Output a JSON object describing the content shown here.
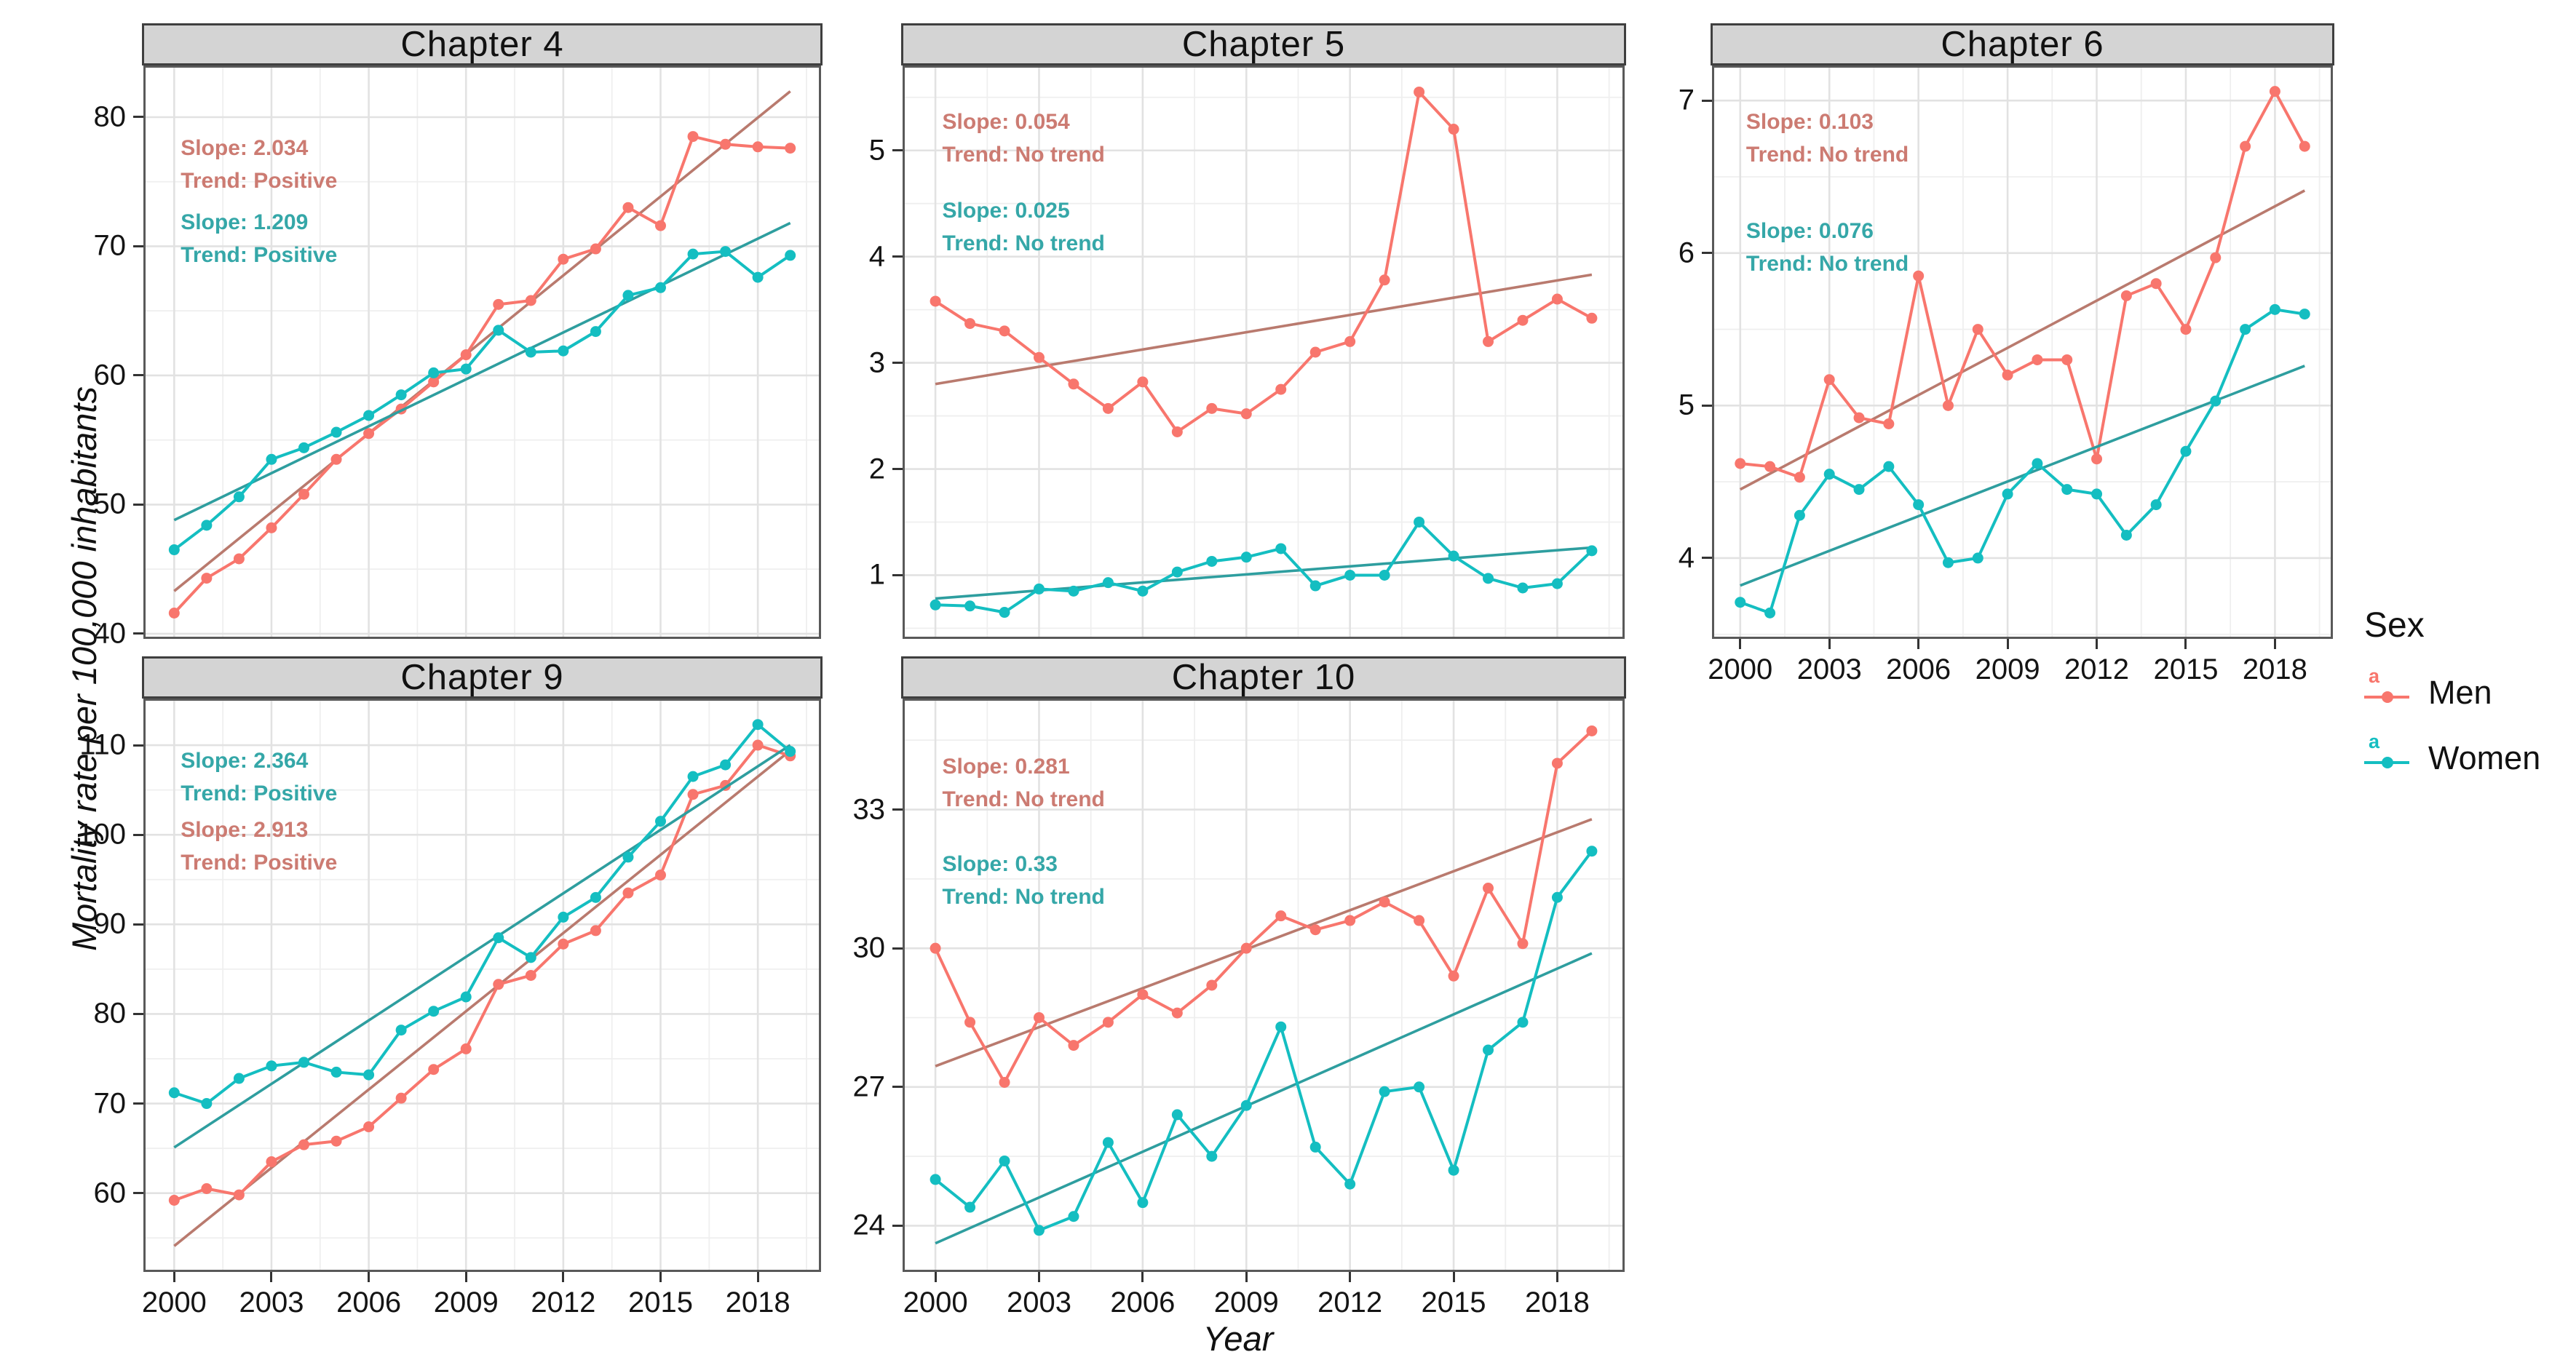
{
  "figure": {
    "ylabel": "Mortality rate per 100,000 inhabitants",
    "xlabel": "Year"
  },
  "colors": {
    "men": "#F8766D",
    "men_trend": "#B97A6E",
    "men_anno": "#CC7B72",
    "women": "#14BEC1",
    "women_trend": "#2E9E9F",
    "women_anno": "#35A7A8",
    "strip_bg": "#d4d4d4",
    "panel_border": "#595959",
    "grid_major": "#e2e2e2",
    "grid_minor": "#efefef"
  },
  "legend": {
    "title": "Sex",
    "items": [
      {
        "label": "Men",
        "glyph": "a",
        "color_key": "men"
      },
      {
        "label": "Women",
        "glyph": "a",
        "color_key": "women"
      }
    ]
  },
  "chart_data": [
    {
      "type": "line",
      "title": "Chapter 4",
      "grid": {
        "row": 0,
        "col": 0,
        "show_x_axis": false
      },
      "x": [
        2000,
        2001,
        2002,
        2003,
        2004,
        2005,
        2006,
        2007,
        2008,
        2009,
        2010,
        2011,
        2012,
        2013,
        2014,
        2015,
        2016,
        2017,
        2018,
        2019
      ],
      "xticks": [
        2000,
        2003,
        2006,
        2009,
        2012,
        2015,
        2018
      ],
      "yticks": [
        40,
        50,
        60,
        70,
        80
      ],
      "ylim": [
        39.6,
        84.0
      ],
      "series": [
        {
          "name": "Men",
          "values": [
            41.6,
            44.3,
            45.8,
            48.2,
            50.8,
            53.5,
            55.5,
            57.4,
            59.5,
            61.6,
            65.5,
            65.8,
            69.0,
            69.8,
            73.0,
            71.6,
            78.5,
            77.9,
            77.7,
            77.6
          ],
          "trend": {
            "y_start": 43.3,
            "y_end": 82.0
          }
        },
        {
          "name": "Women",
          "values": [
            46.5,
            48.4,
            50.6,
            53.5,
            54.4,
            55.6,
            56.9,
            58.5,
            60.2,
            60.5,
            63.5,
            61.8,
            61.9,
            63.4,
            66.2,
            66.8,
            69.4,
            69.6,
            67.6,
            69.3
          ],
          "trend": {
            "y_start": 48.8,
            "y_end": 71.8
          }
        }
      ],
      "annotations": [
        {
          "series": "men",
          "lines": [
            "Slope: 2.034",
            "Trend: Positive"
          ],
          "fx": 0.055,
          "fy": 0.115
        },
        {
          "series": "women",
          "lines": [
            "Slope: 1.209",
            "Trend: Positive"
          ],
          "fx": 0.055,
          "fy": 0.245
        }
      ]
    },
    {
      "type": "line",
      "title": "Chapter 5",
      "grid": {
        "row": 0,
        "col": 1,
        "show_x_axis": false
      },
      "x": [
        2000,
        2001,
        2002,
        2003,
        2004,
        2005,
        2006,
        2007,
        2008,
        2009,
        2010,
        2011,
        2012,
        2013,
        2014,
        2015,
        2016,
        2017,
        2018,
        2019
      ],
      "xticks": [
        2000,
        2003,
        2006,
        2009,
        2012,
        2015,
        2018
      ],
      "yticks": [
        1,
        2,
        3,
        4,
        5
      ],
      "ylim": [
        0.4,
        5.8
      ],
      "series": [
        {
          "name": "Men",
          "values": [
            3.58,
            3.37,
            3.3,
            3.05,
            2.8,
            2.57,
            2.82,
            2.35,
            2.57,
            2.52,
            2.75,
            3.1,
            3.2,
            3.78,
            5.55,
            5.2,
            3.2,
            3.4,
            3.6,
            3.42
          ],
          "trend": {
            "y_start": 2.8,
            "y_end": 3.83
          }
        },
        {
          "name": "Women",
          "values": [
            0.72,
            0.71,
            0.65,
            0.87,
            0.85,
            0.93,
            0.85,
            1.03,
            1.13,
            1.17,
            1.25,
            0.9,
            1.0,
            1.0,
            1.5,
            1.18,
            0.97,
            0.88,
            0.92,
            1.23
          ],
          "trend": {
            "y_start": 0.78,
            "y_end": 1.26
          }
        }
      ],
      "annotations": [
        {
          "series": "men",
          "lines": [
            "Slope: 0.054",
            "Trend: No trend"
          ],
          "fx": 0.055,
          "fy": 0.07
        },
        {
          "series": "women",
          "lines": [
            "Slope: 0.025",
            "Trend: No trend"
          ],
          "fx": 0.055,
          "fy": 0.225
        }
      ]
    },
    {
      "type": "line",
      "title": "Chapter 6",
      "grid": {
        "row": 0,
        "col": 2,
        "show_x_axis": true
      },
      "x": [
        2000,
        2001,
        2002,
        2003,
        2004,
        2005,
        2006,
        2007,
        2008,
        2009,
        2010,
        2011,
        2012,
        2013,
        2014,
        2015,
        2016,
        2017,
        2018,
        2019
      ],
      "xticks": [
        2000,
        2003,
        2006,
        2009,
        2012,
        2015,
        2018
      ],
      "yticks": [
        4,
        5,
        6,
        7
      ],
      "ylim": [
        3.47,
        7.23
      ],
      "series": [
        {
          "name": "Men",
          "values": [
            4.62,
            4.6,
            4.53,
            5.17,
            4.92,
            4.88,
            5.85,
            5.0,
            5.5,
            5.2,
            5.3,
            5.3,
            4.65,
            5.72,
            5.8,
            5.5,
            5.97,
            6.7,
            7.06,
            6.7
          ],
          "trend": {
            "y_start": 4.45,
            "y_end": 6.41
          }
        },
        {
          "name": "Women",
          "values": [
            3.71,
            3.64,
            4.28,
            4.55,
            4.45,
            4.6,
            4.35,
            3.97,
            4.0,
            4.42,
            4.62,
            4.45,
            4.42,
            4.15,
            4.35,
            4.7,
            5.03,
            5.5,
            5.63,
            5.6
          ],
          "trend": {
            "y_start": 3.82,
            "y_end": 5.26
          }
        }
      ],
      "annotations": [
        {
          "series": "men",
          "lines": [
            "Slope: 0.103",
            "Trend: No trend"
          ],
          "fx": 0.055,
          "fy": 0.07
        },
        {
          "series": "women",
          "lines": [
            "Slope: 0.076",
            "Trend: No trend"
          ],
          "fx": 0.055,
          "fy": 0.26
        }
      ]
    },
    {
      "type": "line",
      "title": "Chapter 9",
      "grid": {
        "row": 1,
        "col": 0,
        "show_x_axis": true
      },
      "x": [
        2000,
        2001,
        2002,
        2003,
        2004,
        2005,
        2006,
        2007,
        2008,
        2009,
        2010,
        2011,
        2012,
        2013,
        2014,
        2015,
        2016,
        2017,
        2018,
        2019
      ],
      "xticks": [
        2000,
        2003,
        2006,
        2009,
        2012,
        2015,
        2018
      ],
      "yticks": [
        60,
        70,
        80,
        90,
        100,
        110
      ],
      "ylim": [
        51.2,
        115.2
      ],
      "series": [
        {
          "name": "Men",
          "values": [
            59.2,
            60.5,
            59.8,
            63.5,
            65.4,
            65.8,
            67.4,
            70.6,
            73.8,
            76.1,
            83.3,
            84.3,
            87.8,
            89.3,
            93.5,
            95.5,
            104.5,
            105.5,
            110.0,
            108.8
          ],
          "trend": {
            "y_start": 54.1,
            "y_end": 109.4
          }
        },
        {
          "name": "Women",
          "values": [
            71.2,
            70.0,
            72.8,
            74.2,
            74.6,
            73.5,
            73.2,
            78.2,
            80.3,
            81.9,
            88.5,
            86.3,
            90.8,
            93.0,
            97.5,
            101.5,
            106.5,
            107.8,
            112.3,
            109.3
          ],
          "trend": {
            "y_start": 65.1,
            "y_end": 110.0
          }
        }
      ],
      "annotations": [
        {
          "series": "women",
          "lines": [
            "Slope: 2.364",
            "Trend: Positive"
          ],
          "fx": 0.055,
          "fy": 0.08
        },
        {
          "series": "men",
          "lines": [
            "Slope: 2.913",
            "Trend: Positive"
          ],
          "fx": 0.055,
          "fy": 0.2
        }
      ]
    },
    {
      "type": "line",
      "title": "Chapter 10",
      "grid": {
        "row": 1,
        "col": 1,
        "show_x_axis": true
      },
      "x": [
        2000,
        2001,
        2002,
        2003,
        2004,
        2005,
        2006,
        2007,
        2008,
        2009,
        2010,
        2011,
        2012,
        2013,
        2014,
        2015,
        2016,
        2017,
        2018,
        2019
      ],
      "xticks": [
        2000,
        2003,
        2006,
        2009,
        2012,
        2015,
        2018
      ],
      "yticks": [
        24,
        27,
        30,
        33
      ],
      "ylim": [
        23.0,
        35.4
      ],
      "series": [
        {
          "name": "Men",
          "values": [
            30.0,
            28.4,
            27.1,
            28.5,
            27.9,
            28.4,
            29.0,
            28.6,
            29.2,
            30.0,
            30.7,
            30.4,
            30.6,
            31.0,
            30.6,
            29.4,
            31.3,
            30.1,
            34.0,
            34.7
          ],
          "trend": {
            "y_start": 27.45,
            "y_end": 32.79
          }
        },
        {
          "name": "Women",
          "values": [
            25.0,
            24.4,
            25.4,
            23.9,
            24.2,
            25.8,
            24.5,
            26.4,
            25.5,
            26.6,
            28.3,
            25.7,
            24.9,
            26.9,
            27.0,
            25.2,
            27.8,
            28.4,
            31.1,
            32.1
          ],
          "trend": {
            "y_start": 23.62,
            "y_end": 29.89
          }
        }
      ],
      "annotations": [
        {
          "series": "men",
          "lines": [
            "Slope: 0.281",
            "Trend: No trend"
          ],
          "fx": 0.055,
          "fy": 0.09
        },
        {
          "series": "women",
          "lines": [
            "Slope: 0.33",
            "Trend: No trend"
          ],
          "fx": 0.055,
          "fy": 0.26
        }
      ]
    }
  ]
}
